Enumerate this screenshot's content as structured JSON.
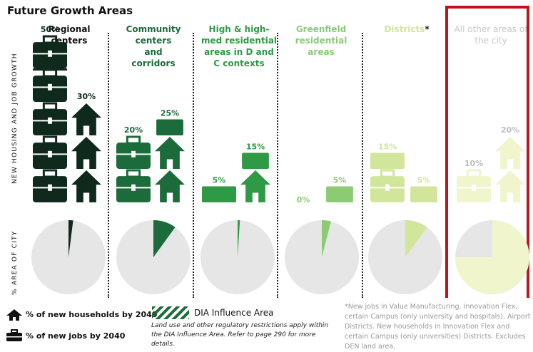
{
  "title": "Future Growth Areas",
  "y_label_top": "NEW HOUSING AND JOB GROWTH",
  "y_label_bottom": "% AREA OF CITY",
  "chart_data": {
    "type": "bar",
    "categories": [
      "Regional centers",
      "Community centers and corridors",
      "High & high-med residential areas in D and C contexts",
      "Greenfield residential areas",
      "Districts",
      "All other areas of the city"
    ],
    "series": [
      {
        "name": "% of new jobs by 2040",
        "values": [
          50,
          20,
          5,
          0,
          15,
          10
        ]
      },
      {
        "name": "% of new households by 2040",
        "values": [
          30,
          25,
          15,
          5,
          5,
          20
        ]
      }
    ],
    "area_share": [
      2,
      10,
      1,
      4,
      10,
      75
    ],
    "colors": [
      "#0f2a1c",
      "#1c6b3b",
      "#2e9a45",
      "#8ccb74",
      "#d1e69a",
      "#f0f5cc"
    ],
    "pie_background": "#e6e6e6"
  },
  "columns": [
    {
      "name": "Regional centers",
      "color": "#111111",
      "jobs_label": "50%",
      "households_label": "30%"
    },
    {
      "name": "Community centers and corridors",
      "color": "#1c6b3b",
      "jobs_label": "20%",
      "households_label": "25%"
    },
    {
      "name": "High & high-med residential areas in D and C contexts",
      "color": "#2e9a45",
      "jobs_label": "5%",
      "households_label": "15%"
    },
    {
      "name": "Greenfield residential areas",
      "color": "#8ccb74",
      "jobs_label": "0%",
      "households_label": "5%"
    },
    {
      "name": "Districts",
      "color": "#d1e69a",
      "asterisk": "*",
      "jobs_label": "15%",
      "households_label": "5%"
    },
    {
      "name": "All other areas of the city",
      "color": "#c8c8c8",
      "jobs_label": "10%",
      "households_label": "20%"
    }
  ],
  "legend": {
    "households": "% of new households by 2040",
    "jobs": "% of new jobs by 2040",
    "dia_title": "DIA Influence Area",
    "dia_note": "Land use and other regulatory restrictions apply within the DIA Influence Area. Refer to page 290 for more details."
  },
  "footnote": "*New jobs in Value Manufacturing, Innovation Flex, certain Campus (only university and hospitals), Airport Districts. New households in Innovation Flex and certain Campus (only universities) Districts. Excludes DEN land area."
}
